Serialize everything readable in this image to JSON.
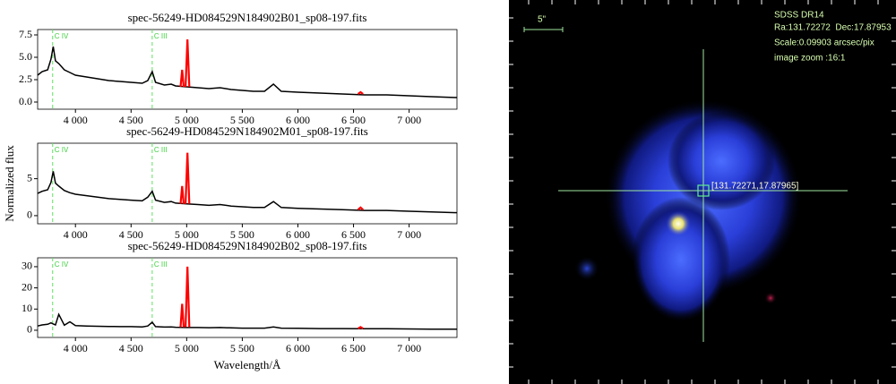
{
  "chart_data": [
    {
      "type": "line",
      "title": "spec-56249-HD084529N184902B01_sp08-197.fits",
      "xlim": [
        3660,
        7430
      ],
      "ylim": [
        -0.8,
        8.1
      ],
      "xticks": [
        {
          "value": 4000,
          "label": "4 000"
        },
        {
          "value": 4500,
          "label": "4 500"
        },
        {
          "value": 5000,
          "label": "5 000"
        },
        {
          "value": 5500,
          "label": "5 500"
        },
        {
          "value": 6000,
          "label": "6 000"
        },
        {
          "value": 6500,
          "label": "6 500"
        },
        {
          "value": 7000,
          "label": "7 000"
        }
      ],
      "yticks": [
        {
          "value": 0,
          "label": "0.0"
        },
        {
          "value": 2.5,
          "label": "2.5"
        },
        {
          "value": 5,
          "label": "5.0"
        },
        {
          "value": 7.5,
          "label": "7.5"
        }
      ],
      "annotations": [
        {
          "text": "C IV",
          "x": 3795
        },
        {
          "text": "C III",
          "x": 4690
        }
      ],
      "series": [
        {
          "color": "#000000",
          "x": [
            3660,
            3700,
            3750,
            3780,
            3800,
            3820,
            3850,
            3900,
            3950,
            4000,
            4100,
            4200,
            4300,
            4400,
            4500,
            4600,
            4650,
            4690,
            4720,
            4800,
            4861,
            4900,
            5000,
            5100,
            5200,
            5300,
            5400,
            5500,
            5600,
            5700,
            5780,
            5850,
            6000,
            6200,
            6400,
            6600,
            6800,
            7000,
            7200,
            7430
          ],
          "values": [
            3.0,
            3.4,
            3.6,
            4.8,
            6.2,
            4.6,
            4.3,
            3.6,
            3.3,
            3.0,
            2.8,
            2.6,
            2.4,
            2.3,
            2.2,
            2.1,
            2.4,
            3.4,
            2.2,
            1.9,
            2.0,
            1.8,
            1.7,
            1.6,
            1.5,
            1.6,
            1.4,
            1.3,
            1.2,
            1.2,
            2.0,
            1.2,
            1.1,
            1.0,
            0.9,
            0.8,
            0.8,
            0.7,
            0.6,
            0.5
          ]
        },
        {
          "color": "#ff0000",
          "x": [
            4945,
            4959,
            4973,
            null,
            4990,
            5007,
            5024,
            null,
            6540,
            6563,
            6586
          ],
          "values": [
            1.7,
            3.6,
            1.7,
            null,
            1.7,
            7.0,
            1.7,
            null,
            0.9,
            1.1,
            0.9
          ]
        }
      ]
    },
    {
      "type": "line",
      "title": "spec-56249-HD084529N184902M01_sp08-197.fits",
      "ylabel": "Normalized flux",
      "xlim": [
        3660,
        7430
      ],
      "ylim": [
        -1.1,
        9.8
      ],
      "xticks": [
        {
          "value": 4000,
          "label": "4 000"
        },
        {
          "value": 4500,
          "label": "4 500"
        },
        {
          "value": 5000,
          "label": "5 000"
        },
        {
          "value": 5500,
          "label": "5 500"
        },
        {
          "value": 6000,
          "label": "6 000"
        },
        {
          "value": 6500,
          "label": "6 500"
        },
        {
          "value": 7000,
          "label": "7 000"
        }
      ],
      "yticks": [
        0,
        5
      ],
      "annotations": [
        {
          "text": "C IV",
          "x": 3795
        },
        {
          "text": "C III",
          "x": 4690
        }
      ],
      "series": [
        {
          "color": "#000000",
          "x": [
            3660,
            3700,
            3750,
            3780,
            3800,
            3820,
            3850,
            3900,
            3950,
            4000,
            4100,
            4200,
            4300,
            4400,
            4500,
            4600,
            4650,
            4690,
            4720,
            4800,
            4861,
            4900,
            5000,
            5100,
            5200,
            5300,
            5400,
            5500,
            5600,
            5700,
            5780,
            5850,
            6000,
            6200,
            6400,
            6600,
            6800,
            7000,
            7200,
            7430
          ],
          "values": [
            3.0,
            3.3,
            3.5,
            4.5,
            6.0,
            4.4,
            4.0,
            3.4,
            3.1,
            2.9,
            2.7,
            2.5,
            2.3,
            2.2,
            2.1,
            2.0,
            2.5,
            3.3,
            2.1,
            1.8,
            1.9,
            1.7,
            1.6,
            1.5,
            1.4,
            1.5,
            1.3,
            1.2,
            1.1,
            1.1,
            1.9,
            1.1,
            1.0,
            0.9,
            0.8,
            0.7,
            0.7,
            0.6,
            0.5,
            0.4
          ]
        },
        {
          "color": "#ff0000",
          "x": [
            4945,
            4959,
            4973,
            null,
            4990,
            5007,
            5024,
            null,
            6540,
            6563,
            6586
          ],
          "values": [
            1.6,
            4.0,
            1.6,
            null,
            1.6,
            8.5,
            1.6,
            null,
            0.8,
            1.1,
            0.8
          ]
        }
      ]
    },
    {
      "type": "line",
      "title": "spec-56249-HD084529N184902B02_sp08-197.fits",
      "xlabel": "Wavelength/Å",
      "xlim": [
        3660,
        7430
      ],
      "ylim": [
        -3.4,
        34.2
      ],
      "xticks": [
        {
          "value": 4000,
          "label": "4 000"
        },
        {
          "value": 4500,
          "label": "4 500"
        },
        {
          "value": 5000,
          "label": "5 000"
        },
        {
          "value": 5500,
          "label": "5 500"
        },
        {
          "value": 6000,
          "label": "6 000"
        },
        {
          "value": 6500,
          "label": "6 500"
        },
        {
          "value": 7000,
          "label": "7 000"
        }
      ],
      "yticks": [
        0,
        10,
        20,
        30
      ],
      "annotations": [
        {
          "text": "C IV",
          "x": 3795
        },
        {
          "text": "C III",
          "x": 4690
        }
      ],
      "series": [
        {
          "color": "#000000",
          "x": [
            3660,
            3700,
            3750,
            3780,
            3800,
            3820,
            3850,
            3900,
            3950,
            4000,
            4100,
            4200,
            4300,
            4400,
            4500,
            4600,
            4650,
            4690,
            4720,
            4800,
            4861,
            4900,
            5000,
            5100,
            5200,
            5300,
            5400,
            5500,
            5600,
            5700,
            5780,
            5850,
            6000,
            6200,
            6400,
            6600,
            6800,
            7000,
            7200,
            7430
          ],
          "values": [
            2.0,
            2.5,
            2.8,
            3.5,
            3.0,
            2.5,
            7.5,
            2.4,
            4.0,
            2.2,
            2.0,
            1.9,
            1.8,
            1.7,
            1.7,
            1.6,
            2.0,
            3.8,
            1.7,
            1.5,
            1.6,
            1.4,
            1.3,
            1.3,
            1.2,
            1.3,
            1.1,
            1.0,
            1.0,
            1.0,
            1.6,
            1.0,
            0.9,
            0.8,
            0.8,
            0.7,
            0.7,
            0.6,
            0.5,
            0.5
          ]
        },
        {
          "color": "#ff0000",
          "x": [
            4945,
            4959,
            4973,
            null,
            4990,
            5007,
            5024,
            null,
            6540,
            6563,
            6586
          ],
          "values": [
            1.5,
            12.5,
            1.5,
            null,
            1.5,
            30,
            1.5,
            null,
            0.8,
            1.5,
            0.8
          ]
        }
      ]
    }
  ],
  "image_panel": {
    "scale_bar": "5\"",
    "survey": "SDSS DR14",
    "coords": "Ra:131.72272  Dec:17.87953",
    "scale": "Scale:0.09903 arcsec/pix",
    "zoom": "image zoom :16:1",
    "target": "[131.72271,17.87965]"
  }
}
